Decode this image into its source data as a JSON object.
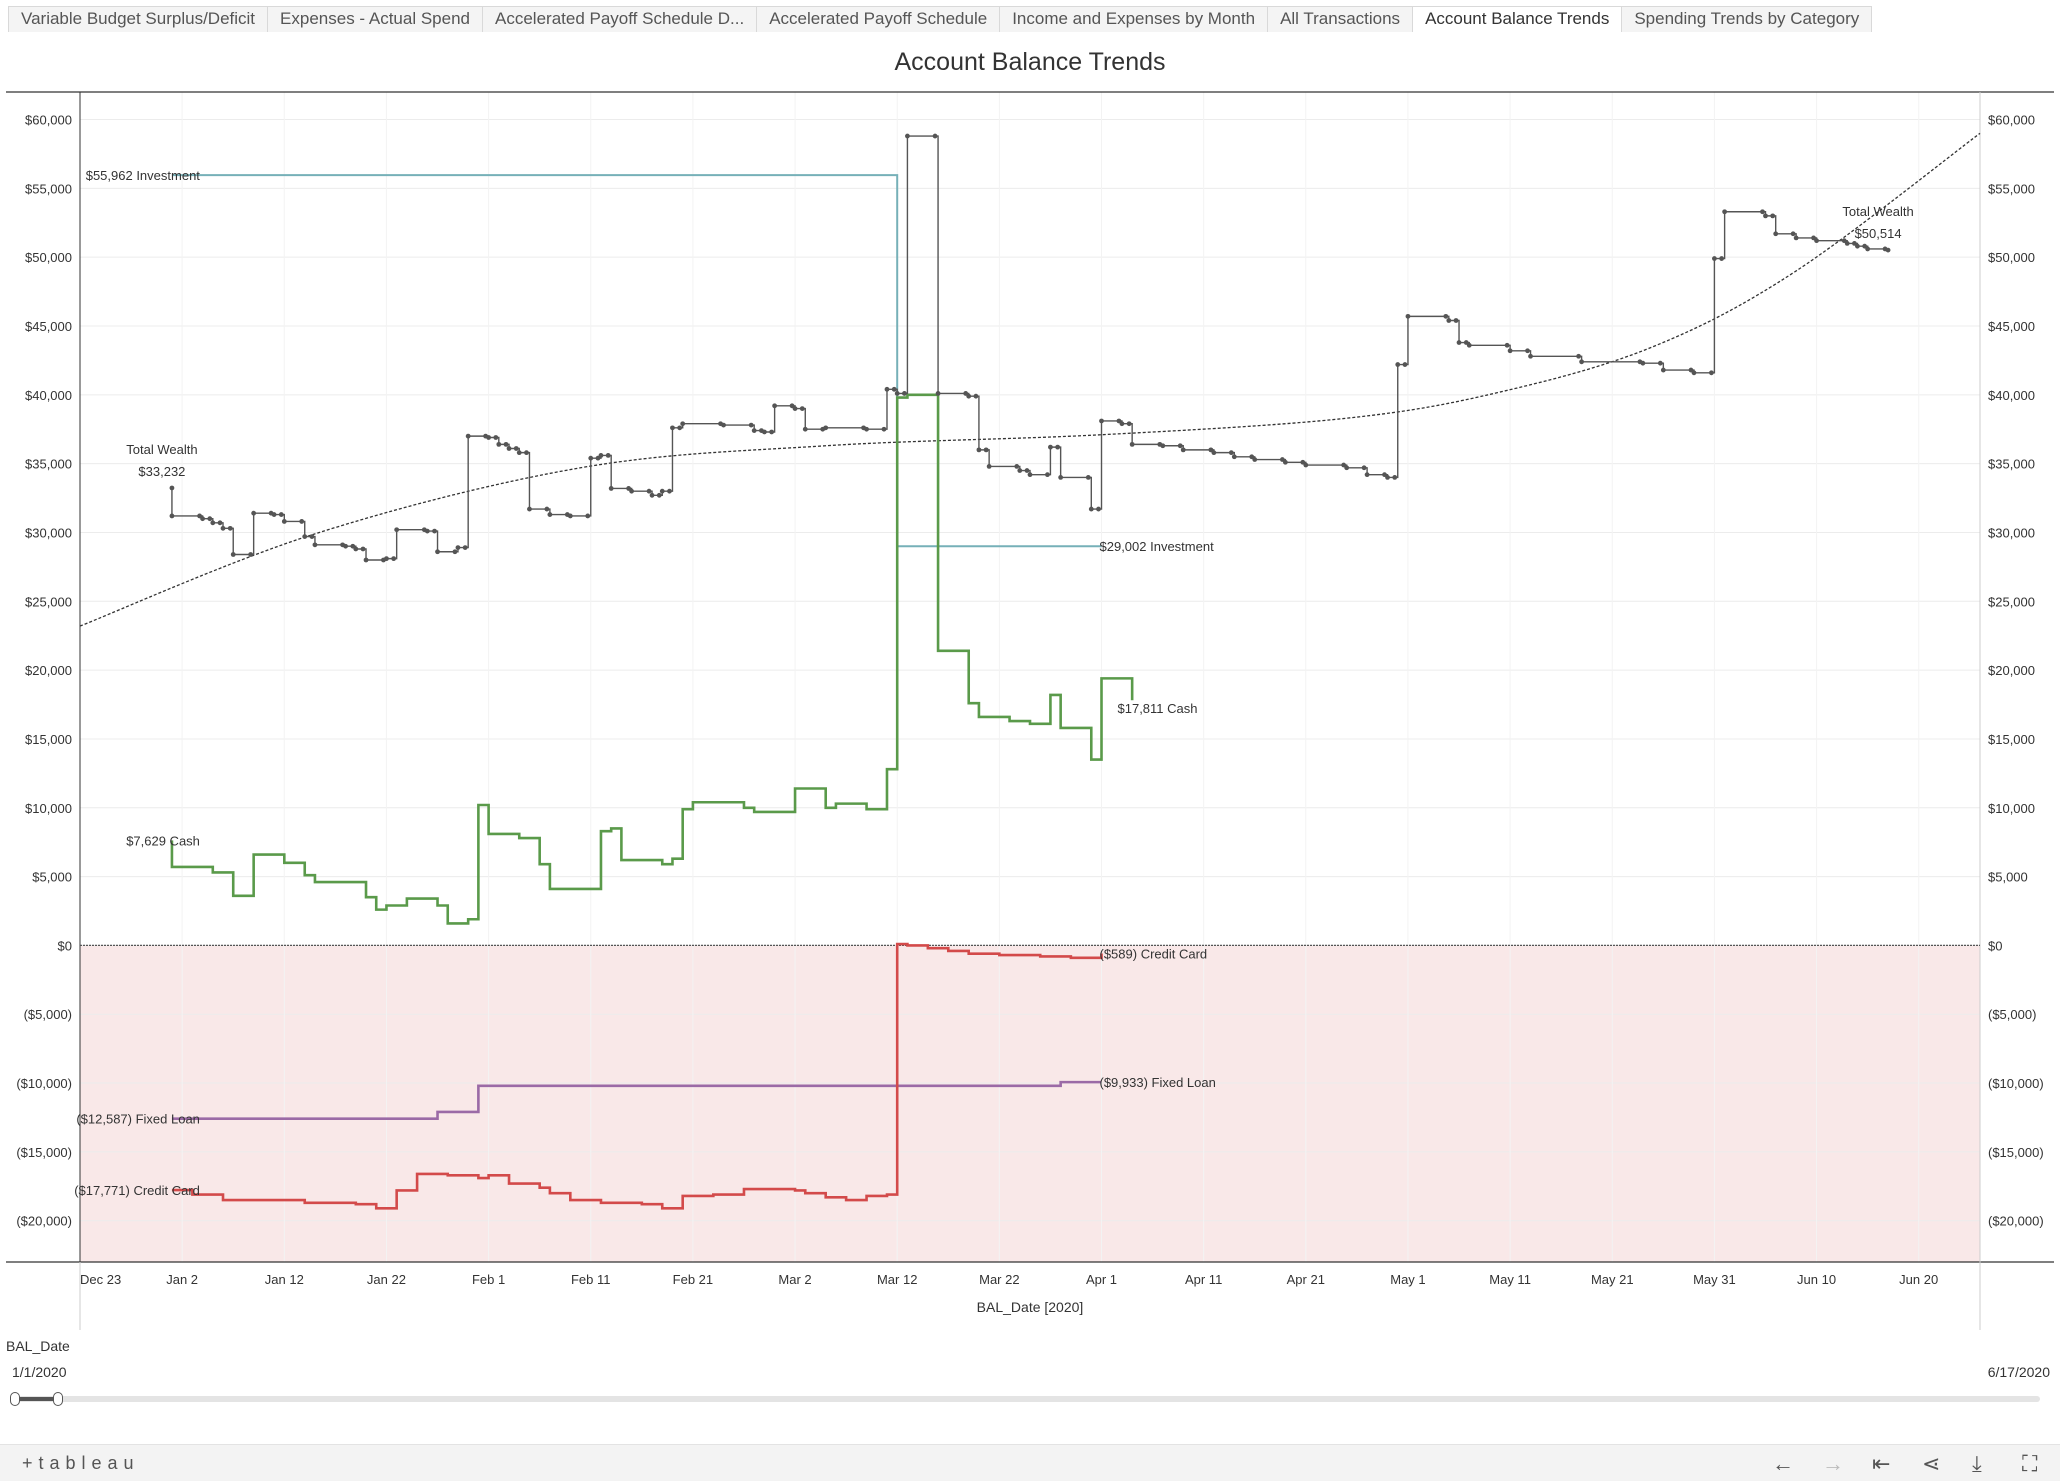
{
  "tabs": [
    {
      "label": "Variable Budget Surplus/Deficit"
    },
    {
      "label": "Expenses - Actual Spend"
    },
    {
      "label": "Accelerated Payoff Schedule D..."
    },
    {
      "label": "Accelerated Payoff Schedule"
    },
    {
      "label": "Income and Expenses by Month"
    },
    {
      "label": "All Transactions"
    },
    {
      "label": "Account Balance Trends"
    },
    {
      "label": "Spending Trends by Category"
    }
  ],
  "active_tab": "Account Balance Trends",
  "filter": {
    "label": "BAL_Date",
    "min": "1/1/2020",
    "max": "6/17/2020",
    "selected_fraction": 0.02
  },
  "footer": {
    "logo": "+tableau",
    "icons": [
      "back-arrow",
      "forward-arrow",
      "revert-to-start",
      "share",
      "download",
      "fullscreen"
    ]
  },
  "chart_data": {
    "type": "line",
    "title": "Account Balance Trends",
    "xlabel": "BAL_Date [2020]",
    "ylabel": "",
    "ylim": [
      -23000,
      62000
    ],
    "xlim": [
      "2019-12-23",
      "2020-06-26"
    ],
    "yticks": [
      "$60,000",
      "$55,000",
      "$50,000",
      "$45,000",
      "$40,000",
      "$35,000",
      "$30,000",
      "$25,000",
      "$20,000",
      "$15,000",
      "$10,000",
      "$5,000",
      "$0",
      "($5,000)",
      "($10,000)",
      "($15,000)",
      "($20,000)"
    ],
    "ytick_values": [
      60000,
      55000,
      50000,
      45000,
      40000,
      35000,
      30000,
      25000,
      20000,
      15000,
      10000,
      5000,
      0,
      -5000,
      -10000,
      -15000,
      -20000
    ],
    "xticks": [
      "Dec 23",
      "Jan 2",
      "Jan 12",
      "Jan 22",
      "Feb 1",
      "Feb 11",
      "Feb 21",
      "Mar 2",
      "Mar 12",
      "Mar 22",
      "Apr 1",
      "Apr 11",
      "Apr 21",
      "May 1",
      "May 11",
      "May 21",
      "May 31",
      "Jun 10",
      "Jun 20"
    ],
    "xtick_dates": [
      "2019-12-23",
      "2020-01-02",
      "2020-01-12",
      "2020-01-22",
      "2020-02-01",
      "2020-02-11",
      "2020-02-21",
      "2020-03-02",
      "2020-03-12",
      "2020-03-22",
      "2020-04-01",
      "2020-04-11",
      "2020-04-21",
      "2020-05-01",
      "2020-05-11",
      "2020-05-21",
      "2020-05-31",
      "2020-06-10",
      "2020-06-20"
    ],
    "negative_band_color": "#f9e8e8",
    "series": [
      {
        "name": "Investment",
        "color": "#76b0b8",
        "step": true,
        "markers": false,
        "points": [
          [
            "2020-01-01",
            55962
          ],
          [
            "2020-03-12",
            55962
          ],
          [
            "2020-03-12",
            29002
          ],
          [
            "2020-04-01",
            29002
          ]
        ]
      },
      {
        "name": "Cash",
        "color": "#5a9a4a",
        "step": true,
        "markers": false,
        "points": [
          [
            "2020-01-01",
            7629
          ],
          [
            "2020-01-01",
            5700
          ],
          [
            "2020-01-04",
            5700
          ],
          [
            "2020-01-05",
            5300
          ],
          [
            "2020-01-07",
            3600
          ],
          [
            "2020-01-09",
            6600
          ],
          [
            "2020-01-12",
            6000
          ],
          [
            "2020-01-14",
            5100
          ],
          [
            "2020-01-15",
            4600
          ],
          [
            "2020-01-20",
            3500
          ],
          [
            "2020-01-21",
            2600
          ],
          [
            "2020-01-22",
            2900
          ],
          [
            "2020-01-24",
            3400
          ],
          [
            "2020-01-27",
            2900
          ],
          [
            "2020-01-28",
            1600
          ],
          [
            "2020-01-30",
            1900
          ],
          [
            "2020-01-31",
            10200
          ],
          [
            "2020-02-01",
            8100
          ],
          [
            "2020-02-04",
            7800
          ],
          [
            "2020-02-06",
            5900
          ],
          [
            "2020-02-07",
            4100
          ],
          [
            "2020-02-12",
            8300
          ],
          [
            "2020-02-13",
            8500
          ],
          [
            "2020-02-14",
            6200
          ],
          [
            "2020-02-18",
            5900
          ],
          [
            "2020-02-19",
            6300
          ],
          [
            "2020-02-20",
            9900
          ],
          [
            "2020-02-21",
            10400
          ],
          [
            "2020-02-26",
            10000
          ],
          [
            "2020-02-27",
            9700
          ],
          [
            "2020-03-02",
            11400
          ],
          [
            "2020-03-05",
            10000
          ],
          [
            "2020-03-06",
            10300
          ],
          [
            "2020-03-09",
            9900
          ],
          [
            "2020-03-11",
            12800
          ],
          [
            "2020-03-12",
            39800
          ],
          [
            "2020-03-13",
            40000
          ],
          [
            "2020-03-16",
            21400
          ],
          [
            "2020-03-19",
            17600
          ],
          [
            "2020-03-20",
            16600
          ],
          [
            "2020-03-23",
            16300
          ],
          [
            "2020-03-25",
            16100
          ],
          [
            "2020-03-27",
            18200
          ],
          [
            "2020-03-28",
            15800
          ],
          [
            "2020-03-31",
            13500
          ],
          [
            "2020-04-01",
            19400
          ],
          [
            "2020-04-04",
            17811
          ]
        ]
      },
      {
        "name": "Total Wealth",
        "color": "#555555",
        "step": true,
        "markers": true,
        "points": [
          [
            "2020-01-01",
            33232
          ],
          [
            "2020-01-01",
            31200
          ],
          [
            "2020-01-04",
            31000
          ],
          [
            "2020-01-05",
            30700
          ],
          [
            "2020-01-06",
            30300
          ],
          [
            "2020-01-07",
            28400
          ],
          [
            "2020-01-09",
            31400
          ],
          [
            "2020-01-11",
            31300
          ],
          [
            "2020-01-12",
            30800
          ],
          [
            "2020-01-14",
            29700
          ],
          [
            "2020-01-15",
            29100
          ],
          [
            "2020-01-18",
            29000
          ],
          [
            "2020-01-19",
            28800
          ],
          [
            "2020-01-20",
            28000
          ],
          [
            "2020-01-22",
            28100
          ],
          [
            "2020-01-23",
            30200
          ],
          [
            "2020-01-26",
            30100
          ],
          [
            "2020-01-27",
            28600
          ],
          [
            "2020-01-29",
            28900
          ],
          [
            "2020-01-30",
            37000
          ],
          [
            "2020-02-01",
            36900
          ],
          [
            "2020-02-02",
            36400
          ],
          [
            "2020-02-03",
            36100
          ],
          [
            "2020-02-04",
            35800
          ],
          [
            "2020-02-05",
            31700
          ],
          [
            "2020-02-07",
            31300
          ],
          [
            "2020-02-09",
            31200
          ],
          [
            "2020-02-11",
            35400
          ],
          [
            "2020-02-12",
            35600
          ],
          [
            "2020-02-13",
            33200
          ],
          [
            "2020-02-15",
            33000
          ],
          [
            "2020-02-17",
            32700
          ],
          [
            "2020-02-18",
            33000
          ],
          [
            "2020-02-19",
            37600
          ],
          [
            "2020-02-20",
            37900
          ],
          [
            "2020-02-24",
            37800
          ],
          [
            "2020-02-27",
            37400
          ],
          [
            "2020-02-28",
            37300
          ],
          [
            "2020-02-29",
            39200
          ],
          [
            "2020-03-02",
            39000
          ],
          [
            "2020-03-03",
            37500
          ],
          [
            "2020-03-05",
            37600
          ],
          [
            "2020-03-09",
            37500
          ],
          [
            "2020-03-11",
            40400
          ],
          [
            "2020-03-12",
            40100
          ],
          [
            "2020-03-13",
            58800
          ],
          [
            "2020-03-16",
            40100
          ],
          [
            "2020-03-19",
            39900
          ],
          [
            "2020-03-20",
            36000
          ],
          [
            "2020-03-21",
            34800
          ],
          [
            "2020-03-24",
            34500
          ],
          [
            "2020-03-25",
            34200
          ],
          [
            "2020-03-27",
            36200
          ],
          [
            "2020-03-28",
            34000
          ],
          [
            "2020-03-31",
            31700
          ],
          [
            "2020-04-01",
            38100
          ],
          [
            "2020-04-03",
            37900
          ],
          [
            "2020-04-04",
            36400
          ],
          [
            "2020-04-07",
            36300
          ],
          [
            "2020-04-09",
            36000
          ],
          [
            "2020-04-12",
            35800
          ],
          [
            "2020-04-14",
            35500
          ],
          [
            "2020-04-16",
            35300
          ],
          [
            "2020-04-19",
            35100
          ],
          [
            "2020-04-21",
            34900
          ],
          [
            "2020-04-25",
            34700
          ],
          [
            "2020-04-27",
            34200
          ],
          [
            "2020-04-29",
            34000
          ],
          [
            "2020-04-30",
            42200
          ],
          [
            "2020-05-01",
            45700
          ],
          [
            "2020-05-05",
            45400
          ],
          [
            "2020-05-06",
            43800
          ],
          [
            "2020-05-07",
            43600
          ],
          [
            "2020-05-11",
            43200
          ],
          [
            "2020-05-13",
            42800
          ],
          [
            "2020-05-18",
            42400
          ],
          [
            "2020-05-24",
            42300
          ],
          [
            "2020-05-26",
            41800
          ],
          [
            "2020-05-29",
            41600
          ],
          [
            "2020-05-31",
            49900
          ],
          [
            "2020-06-01",
            53300
          ],
          [
            "2020-06-05",
            53000
          ],
          [
            "2020-06-06",
            51700
          ],
          [
            "2020-06-08",
            51400
          ],
          [
            "2020-06-10",
            51200
          ],
          [
            "2020-06-13",
            51000
          ],
          [
            "2020-06-14",
            50800
          ],
          [
            "2020-06-15",
            50600
          ],
          [
            "2020-06-17",
            50514
          ]
        ]
      },
      {
        "name": "Fixed Loan",
        "color": "#9b6aa6",
        "step": true,
        "markers": false,
        "points": [
          [
            "2020-01-01",
            -12587
          ],
          [
            "2020-01-26",
            -12587
          ],
          [
            "2020-01-27",
            -12100
          ],
          [
            "2020-01-31",
            -10200
          ],
          [
            "2020-03-27",
            -10200
          ],
          [
            "2020-03-28",
            -9933
          ],
          [
            "2020-04-01",
            -9933
          ]
        ]
      },
      {
        "name": "Credit Card",
        "color": "#d34a4a",
        "step": true,
        "markers": false,
        "points": [
          [
            "2020-01-01",
            -17771
          ],
          [
            "2020-01-03",
            -18100
          ],
          [
            "2020-01-06",
            -18500
          ],
          [
            "2020-01-12",
            -18500
          ],
          [
            "2020-01-14",
            -18700
          ],
          [
            "2020-01-19",
            -18800
          ],
          [
            "2020-01-21",
            -19100
          ],
          [
            "2020-01-23",
            -17800
          ],
          [
            "2020-01-25",
            -16600
          ],
          [
            "2020-01-28",
            -16700
          ],
          [
            "2020-01-31",
            -16900
          ],
          [
            "2020-02-01",
            -16700
          ],
          [
            "2020-02-03",
            -17300
          ],
          [
            "2020-02-06",
            -17600
          ],
          [
            "2020-02-07",
            -18000
          ],
          [
            "2020-02-09",
            -18500
          ],
          [
            "2020-02-12",
            -18700
          ],
          [
            "2020-02-16",
            -18800
          ],
          [
            "2020-02-18",
            -19100
          ],
          [
            "2020-02-20",
            -18200
          ],
          [
            "2020-02-23",
            -18100
          ],
          [
            "2020-02-26",
            -17700
          ],
          [
            "2020-03-02",
            -17800
          ],
          [
            "2020-03-03",
            -18000
          ],
          [
            "2020-03-05",
            -18300
          ],
          [
            "2020-03-07",
            -18500
          ],
          [
            "2020-03-09",
            -18200
          ],
          [
            "2020-03-11",
            -18100
          ],
          [
            "2020-03-12",
            100
          ],
          [
            "2020-03-13",
            0
          ],
          [
            "2020-03-15",
            -200
          ],
          [
            "2020-03-17",
            -400
          ],
          [
            "2020-03-19",
            -600
          ],
          [
            "2020-03-22",
            -700
          ],
          [
            "2020-03-26",
            -800
          ],
          [
            "2020-03-29",
            -900
          ],
          [
            "2020-04-01",
            -589
          ]
        ]
      }
    ],
    "trend_line": {
      "series": "Total Wealth",
      "style": "dotted",
      "color": "#333333",
      "points": [
        [
          "2019-12-23",
          23200
        ],
        [
          "2020-01-15",
          29900
        ],
        [
          "2020-02-10",
          34700
        ],
        [
          "2020-03-05",
          36300
        ],
        [
          "2020-04-01",
          37100
        ],
        [
          "2020-04-25",
          38300
        ],
        [
          "2020-05-10",
          40200
        ],
        [
          "2020-05-25",
          43500
        ],
        [
          "2020-06-08",
          49000
        ],
        [
          "2020-06-26",
          59000
        ]
      ]
    },
    "annotations": [
      {
        "text": "$55,962 Investment",
        "date": "2020-01-01",
        "value": 55962,
        "anchor": "end-left"
      },
      {
        "text": "$29,002 Investment",
        "date": "2020-04-01",
        "value": 29002,
        "anchor": "start"
      },
      {
        "text": "Total Wealth",
        "date": "2020-01-01",
        "value": 33232,
        "anchor": "above-2"
      },
      {
        "text": "$33,232",
        "date": "2020-01-01",
        "value": 33232,
        "anchor": "above-1"
      },
      {
        "text": "Total Wealth",
        "date": "2020-06-17",
        "value": 50514,
        "anchor": "above-2"
      },
      {
        "text": "$50,514",
        "date": "2020-06-17",
        "value": 50514,
        "anchor": "above-1"
      },
      {
        "text": "$17,811 Cash",
        "date": "2020-04-01",
        "value": 17811,
        "anchor": "start-offset"
      },
      {
        "text": "$7,629 Cash",
        "date": "2020-01-01",
        "value": 7629,
        "anchor": "end-left"
      },
      {
        "text": "($589) Credit Card",
        "date": "2020-04-01",
        "value": -589,
        "anchor": "start"
      },
      {
        "text": "($9,933) Fixed Loan",
        "date": "2020-04-01",
        "value": -9933,
        "anchor": "start"
      },
      {
        "text": "($12,587) Fixed Loan",
        "date": "2020-01-01",
        "value": -12587,
        "anchor": "end-left"
      },
      {
        "text": "($17,771) Credit Card",
        "date": "2020-01-01",
        "value": -17771,
        "anchor": "end-left"
      }
    ]
  }
}
